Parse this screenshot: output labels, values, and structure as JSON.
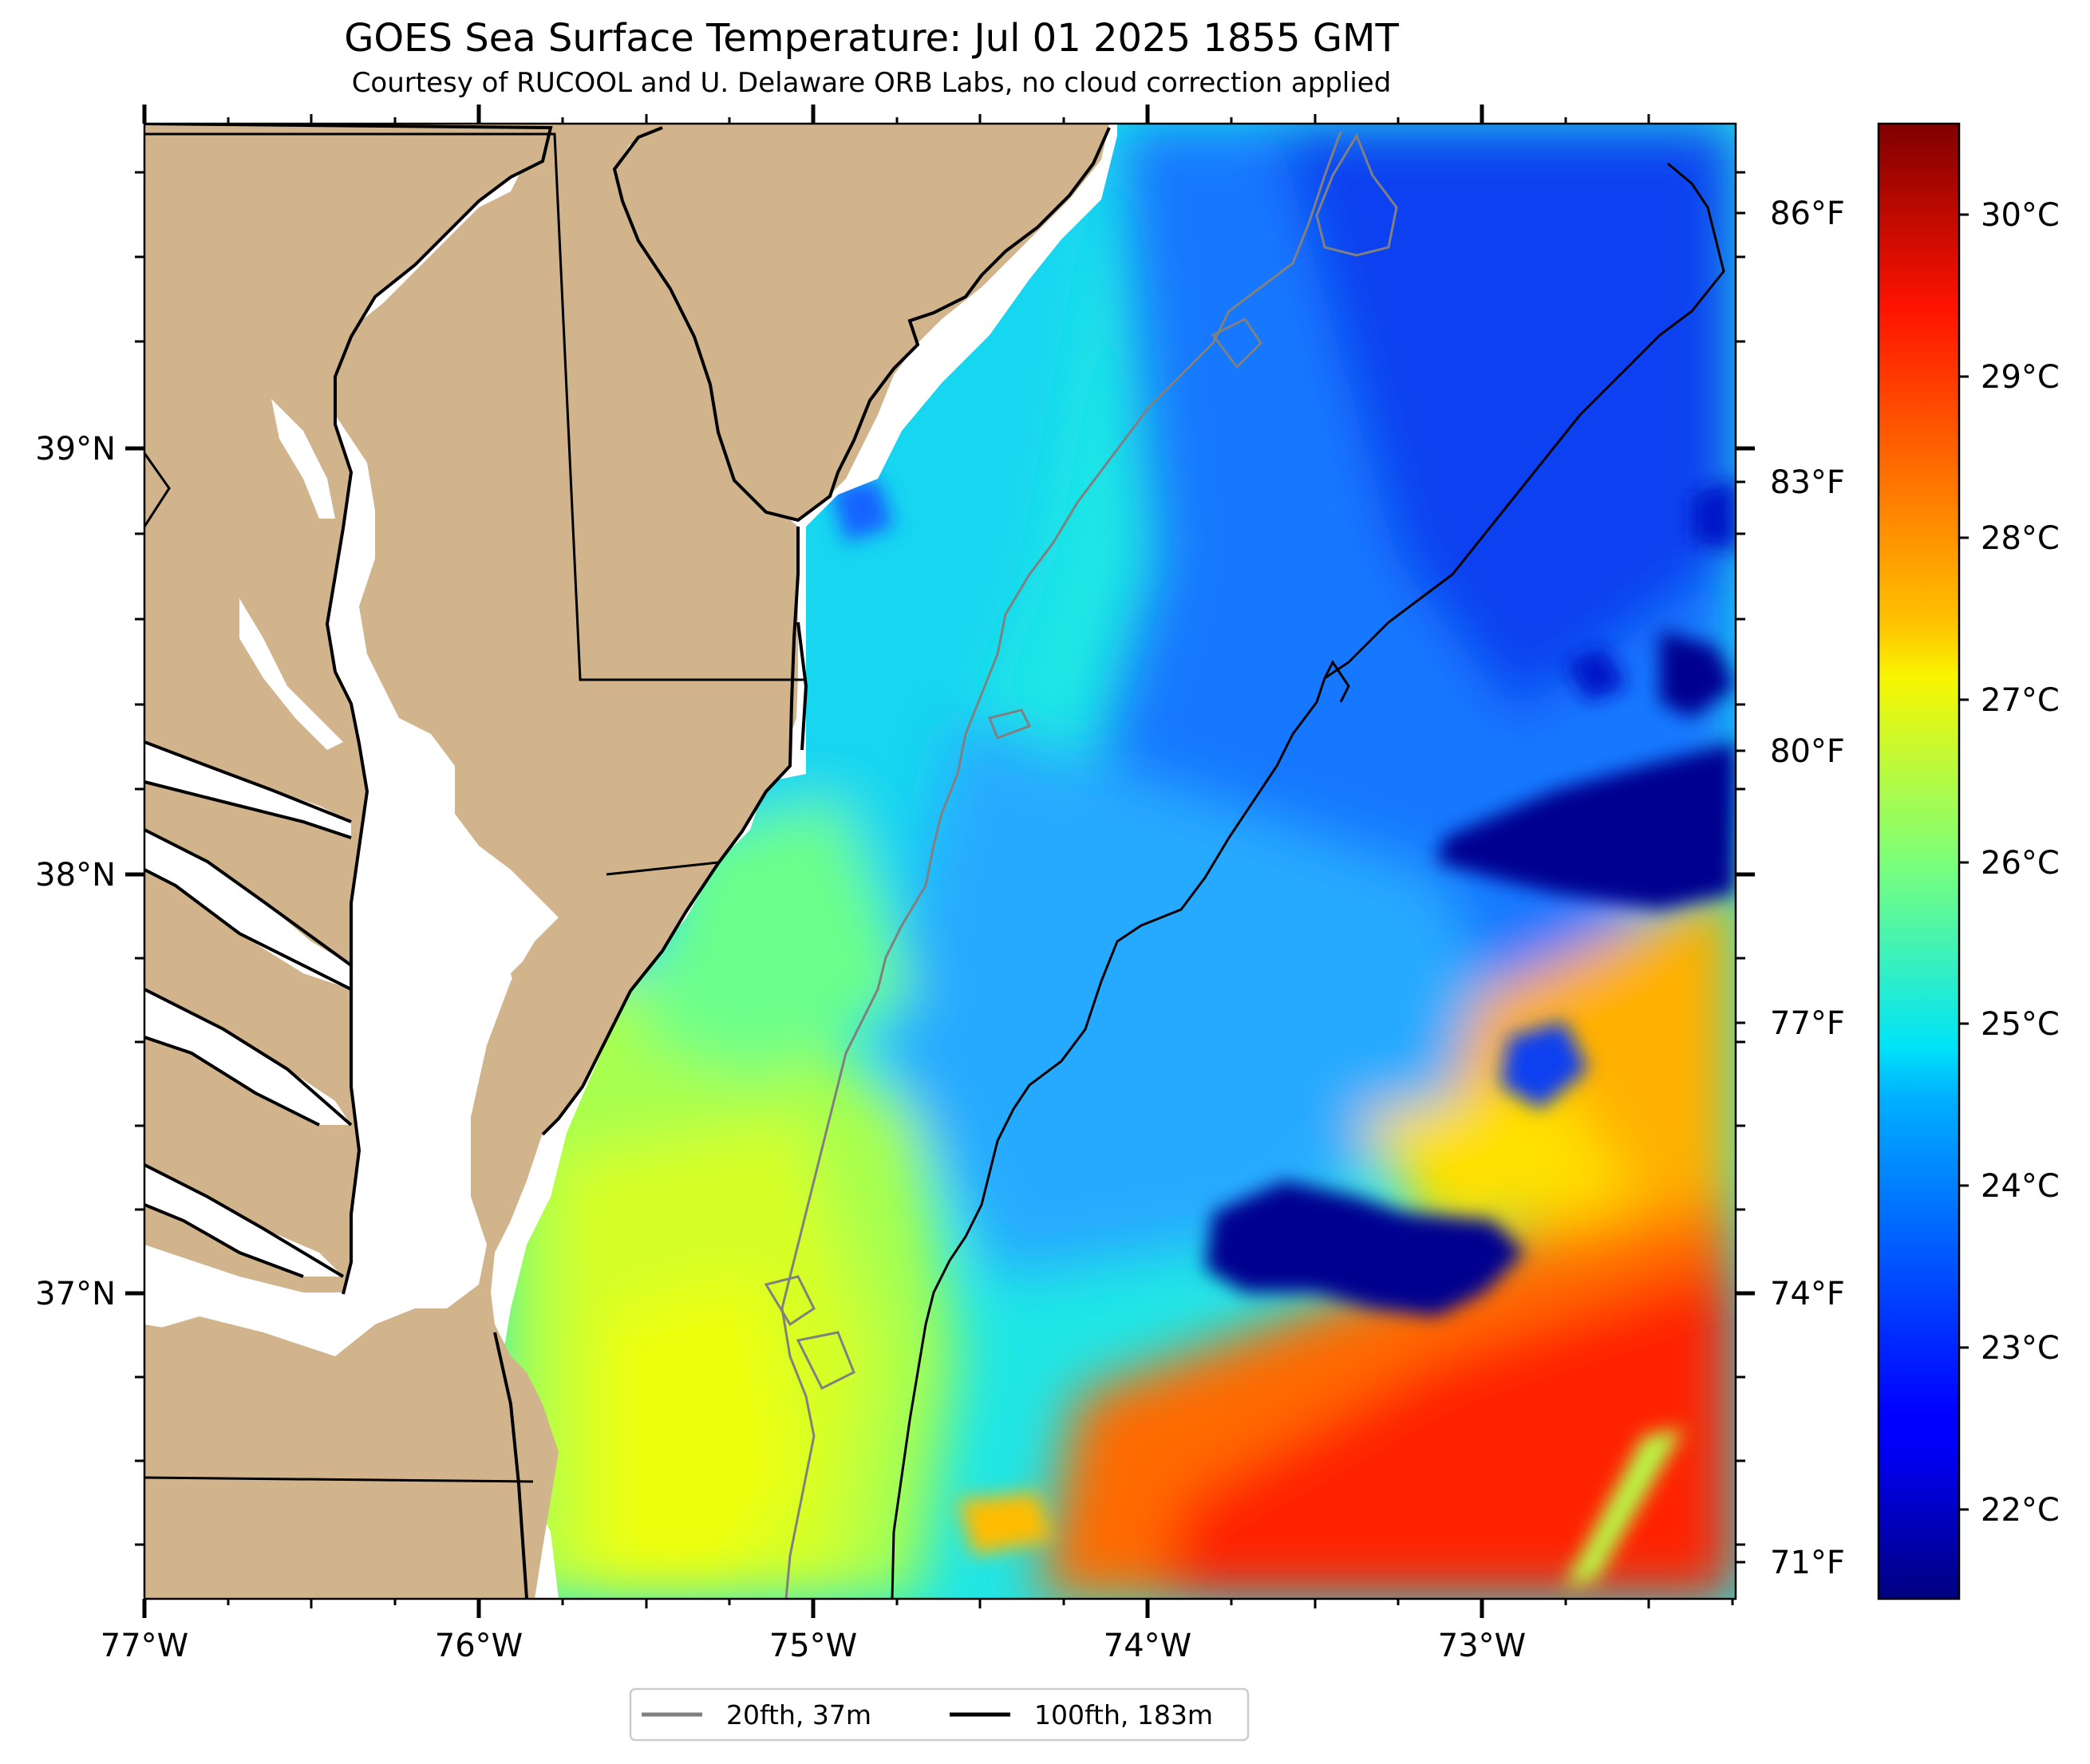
{
  "title": "GOES Sea Surface Temperature: Jul 01 2025 1855 GMT",
  "subtitle": "Courtesy of RUCOOL and U. Delaware ORB Labs, no cloud correction applied",
  "map": {
    "lon_range": [
      -77.0,
      -72.25
    ],
    "lat_range": [
      36.3,
      39.75
    ],
    "lon_ticks": [
      "77°W",
      "76°W",
      "75°W",
      "74°W",
      "73°W"
    ],
    "lat_ticks": [
      "39°N",
      "38°N",
      "37°N"
    ],
    "land_color": "#d2b48c",
    "no_data_color": "#ffffff"
  },
  "fahrenheit_axis": {
    "ticks": [
      "86°F",
      "83°F",
      "80°F",
      "77°F",
      "74°F",
      "71°F"
    ],
    "values_f": [
      86,
      83,
      80,
      77,
      74,
      71
    ]
  },
  "colorbar": {
    "colormap": "jet",
    "range_c": [
      21.5,
      30.5
    ],
    "labels": [
      "30°C",
      "29°C",
      "28°C",
      "27°C",
      "26°C",
      "25°C",
      "24°C",
      "23°C",
      "22°C"
    ],
    "values_c": [
      30,
      29,
      28,
      27,
      26,
      25,
      24,
      23,
      22
    ]
  },
  "legend": {
    "items": [
      {
        "label": "20fth, 37m",
        "color": "#808080"
      },
      {
        "label": "100fth, 183m",
        "color": "#000000"
      }
    ]
  }
}
